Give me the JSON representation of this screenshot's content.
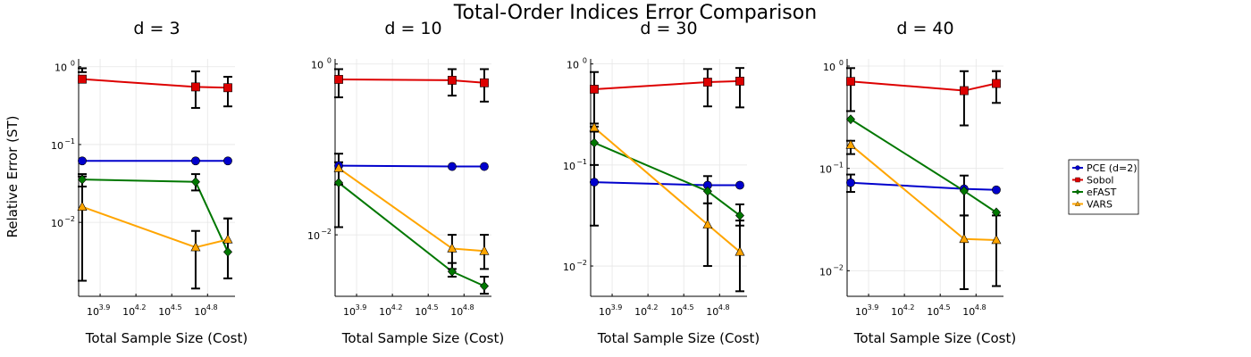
{
  "figure": {
    "title": "Total-Order Indices Error Comparison",
    "ylabel": "Relative Error (ST)",
    "xlabel": "Total Sample Size (Cost)",
    "xticks": [
      3.9,
      4.2,
      4.5,
      4.8
    ],
    "x_tick_base": "10",
    "y_tick_base": "10"
  },
  "legend": {
    "placement": "right",
    "entries": [
      {
        "label": "PCE (d=2)",
        "color": "#0000cc",
        "marker": "circle"
      },
      {
        "label": "Sobol",
        "color": "#dd0000",
        "marker": "square"
      },
      {
        "label": "eFAST",
        "color": "#007700",
        "marker": "diamond"
      },
      {
        "label": "VARS",
        "color": "#ffa500",
        "marker": "triangle"
      }
    ]
  },
  "chart_data": [
    {
      "type": "line",
      "title": "d = 3",
      "x_scale": "log10",
      "y_scale": "log10",
      "xlim_log10": [
        3.72,
        5.03
      ],
      "ylim_log10": [
        -2.95,
        0.1
      ],
      "yticks_exp": [
        0,
        -1,
        -2
      ],
      "grid": true,
      "series": [
        {
          "name": "PCE (d=2)",
          "x_log10": [
            3.75,
            4.7,
            4.97
          ],
          "y_log10": [
            -1.21,
            -1.21,
            -1.21
          ],
          "err_lo": [
            null,
            null,
            null
          ],
          "err_hi": [
            null,
            null,
            null
          ]
        },
        {
          "name": "Sobol",
          "x_log10": [
            3.75,
            4.7,
            4.97
          ],
          "y_log10": [
            -0.16,
            -0.26,
            -0.27
          ],
          "err_lo": [
            -0.07,
            -0.53,
            -0.51
          ],
          "err_hi": [
            -0.02,
            -0.06,
            -0.13
          ]
        },
        {
          "name": "eFAST",
          "x_log10": [
            3.75,
            4.7,
            4.97
          ],
          "y_log10": [
            -1.45,
            -1.48,
            -2.38
          ],
          "err_lo": [
            -1.54,
            -1.59,
            -2.72
          ],
          "err_hi": [
            -1.38,
            -1.38,
            -1.95
          ]
        },
        {
          "name": "VARS",
          "x_log10": [
            3.75,
            4.7,
            4.97
          ],
          "y_log10": [
            -1.8,
            -2.32,
            -2.22
          ],
          "err_lo": [
            -2.75,
            -2.85,
            -2.72
          ],
          "err_hi": [
            -1.41,
            -2.11,
            -1.95
          ]
        }
      ]
    },
    {
      "type": "line",
      "title": "d = 10",
      "x_scale": "log10",
      "y_scale": "log10",
      "xlim_log10": [
        3.72,
        5.03
      ],
      "ylim_log10": [
        -2.72,
        0.06
      ],
      "yticks_exp": [
        0,
        -2
      ],
      "grid": true,
      "series": [
        {
          "name": "PCE (d=2)",
          "x_log10": [
            3.75,
            4.7,
            4.97
          ],
          "y_log10": [
            -1.19,
            -1.2,
            -1.2
          ],
          "err_lo": [
            null,
            null,
            null
          ],
          "err_hi": [
            null,
            null,
            null
          ]
        },
        {
          "name": "Sobol",
          "x_log10": [
            3.75,
            4.7,
            4.97
          ],
          "y_log10": [
            -0.18,
            -0.19,
            -0.22
          ],
          "err_lo": [
            -0.39,
            -0.37,
            -0.44
          ],
          "err_hi": [
            -0.06,
            -0.06,
            -0.06
          ]
        },
        {
          "name": "eFAST",
          "x_log10": [
            3.75,
            4.7,
            4.97
          ],
          "y_log10": [
            -1.39,
            -2.43,
            -2.6
          ],
          "err_lo": [
            -1.91,
            -2.49,
            -2.69
          ],
          "err_hi": [
            -1.05,
            -2.33,
            -2.49
          ]
        },
        {
          "name": "VARS",
          "x_log10": [
            3.75,
            4.7,
            4.97
          ],
          "y_log10": [
            -1.22,
            -2.16,
            -2.19
          ],
          "err_lo": [
            -1.41,
            -2.4,
            -2.4
          ],
          "err_hi": [
            -1.15,
            -2.0,
            -2.0
          ]
        }
      ]
    },
    {
      "type": "line",
      "title": "d = 30",
      "x_scale": "log10",
      "y_scale": "log10",
      "xlim_log10": [
        3.72,
        5.03
      ],
      "ylim_log10": [
        -2.3,
        0.05
      ],
      "yticks_exp": [
        0,
        -1,
        -2
      ],
      "grid": true,
      "series": [
        {
          "name": "PCE (d=2)",
          "x_log10": [
            3.75,
            4.7,
            4.97
          ],
          "y_log10": [
            -1.17,
            -1.2,
            -1.2
          ],
          "err_lo": [
            -1.6,
            null,
            null
          ],
          "err_hi": [
            -1.17,
            null,
            null
          ]
        },
        {
          "name": "Sobol",
          "x_log10": [
            3.75,
            4.7,
            4.97
          ],
          "y_log10": [
            -0.25,
            -0.18,
            -0.17
          ],
          "err_lo": [
            -1.17,
            -0.42,
            -0.43
          ],
          "err_hi": [
            -0.08,
            -0.05,
            -0.04
          ]
        },
        {
          "name": "eFAST",
          "x_log10": [
            3.75,
            4.7,
            4.97
          ],
          "y_log10": [
            -0.78,
            -1.26,
            -1.5
          ],
          "err_lo": [
            -1.0,
            -1.38,
            -1.6
          ],
          "err_hi": [
            -0.62,
            -1.11,
            -1.39
          ]
        },
        {
          "name": "VARS",
          "x_log10": [
            3.75,
            4.7,
            4.97
          ],
          "y_log10": [
            -0.63,
            -1.59,
            -1.86
          ],
          "err_lo": [
            -0.67,
            -2.0,
            -2.25
          ],
          "err_hi": [
            -0.59,
            -1.38,
            -1.55
          ]
        }
      ]
    },
    {
      "type": "line",
      "title": "d = 40",
      "x_scale": "log10",
      "y_scale": "log10",
      "xlim_log10": [
        3.72,
        5.03
      ],
      "ylim_log10": [
        -2.25,
        0.07
      ],
      "yticks_exp": [
        0,
        -1,
        -2
      ],
      "grid": true,
      "series": [
        {
          "name": "PCE (d=2)",
          "x_log10": [
            3.75,
            4.7,
            4.97
          ],
          "y_log10": [
            -1.14,
            -1.2,
            -1.21
          ],
          "err_lo": [
            -1.23,
            null,
            null
          ],
          "err_hi": [
            -1.06,
            null,
            null
          ]
        },
        {
          "name": "Sobol",
          "x_log10": [
            3.75,
            4.7,
            4.97
          ],
          "y_log10": [
            -0.15,
            -0.24,
            -0.17
          ],
          "err_lo": [
            -0.44,
            -0.58,
            -0.36
          ],
          "err_hi": [
            -0.02,
            -0.05,
            -0.05
          ]
        },
        {
          "name": "eFAST",
          "x_log10": [
            3.75,
            4.7,
            4.97
          ],
          "y_log10": [
            -0.52,
            -1.22,
            -1.43
          ],
          "err_lo": [
            null,
            -1.46,
            null
          ],
          "err_hi": [
            null,
            -1.07,
            null
          ]
        },
        {
          "name": "VARS",
          "x_log10": [
            3.75,
            4.7,
            4.97
          ],
          "y_log10": [
            -0.77,
            -1.69,
            -1.7
          ],
          "err_lo": [
            -0.86,
            -2.18,
            -2.15
          ],
          "err_hi": [
            -0.73,
            -1.46,
            -1.46
          ]
        }
      ]
    }
  ]
}
